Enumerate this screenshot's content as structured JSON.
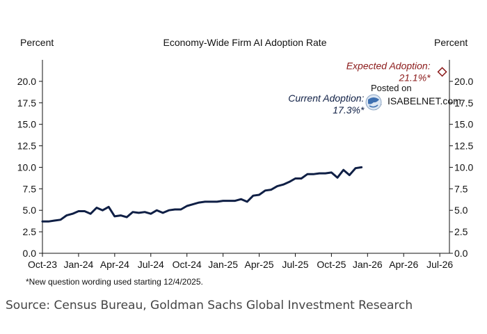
{
  "chart_data": {
    "type": "line",
    "title": "Economy-Wide Firm AI Adoption Rate",
    "ylabel_left": "Percent",
    "ylabel_right": "Percent",
    "ylim": [
      0,
      22.5
    ],
    "yticks": [
      0.0,
      2.5,
      5.0,
      7.5,
      10.0,
      12.5,
      15.0,
      17.5,
      20.0
    ],
    "yticks_labels": [
      "0.0",
      "2.5",
      "5.0",
      "7.5",
      "10.0",
      "12.5",
      "15.0",
      "17.5",
      "20.0"
    ],
    "xticks_labels": [
      "Oct-23",
      "Jan-24",
      "Apr-24",
      "Jul-24",
      "Oct-24",
      "Jan-25",
      "Apr-25",
      "Jul-25",
      "Oct-25",
      "Jan-26",
      "Apr-26",
      "Jul-26"
    ],
    "grid": false,
    "series": [
      {
        "name": "Firm AI Adoption Rate",
        "color": "#0f1f45",
        "x_months": [
          0,
          0.5,
          1,
          1.5,
          2,
          2.5,
          3,
          3.5,
          4,
          4.5,
          5,
          5.5,
          6,
          6.5,
          7,
          7.5,
          8,
          8.5,
          9,
          9.5,
          10,
          10.5,
          11,
          11.5,
          12,
          12.5,
          13,
          13.5,
          14,
          14.5,
          15,
          15.5,
          16,
          16.5,
          17,
          17.5,
          18,
          18.5,
          19,
          19.5,
          20,
          20.5,
          21,
          21.5,
          22,
          22.5,
          23,
          23.5,
          24,
          24.5,
          25
        ],
        "values": [
          3.7,
          3.7,
          3.8,
          3.9,
          4.4,
          4.6,
          4.9,
          4.9,
          4.6,
          5.3,
          5.0,
          5.4,
          4.3,
          4.4,
          4.2,
          4.8,
          4.7,
          4.8,
          4.6,
          5.0,
          4.7,
          5.0,
          5.1,
          5.1,
          5.5,
          5.7,
          5.9,
          6.0,
          6.0,
          6.0,
          6.1,
          6.1,
          6.1,
          6.3,
          6.0,
          6.7,
          6.8,
          7.3,
          7.4,
          7.8,
          8.0,
          8.3,
          8.7,
          8.7,
          9.2,
          9.2,
          9.3,
          9.3,
          9.4,
          8.8,
          9.7
        ]
      }
    ],
    "tail": {
      "x_months": [
        25.5,
        26,
        26.5
      ],
      "values": [
        9.1,
        9.9,
        10.0
      ]
    },
    "points": [
      {
        "name": "Current Adoption",
        "label": "Current Adoption:",
        "value_label": "17.3%*",
        "x_months": 27.7,
        "value": 17.3,
        "color": "#0f1f45",
        "filled": true
      },
      {
        "name": "Expected Adoption",
        "label": "Expected Adoption:",
        "value_label": "21.1%*",
        "x_months": 33.2,
        "value": 21.1,
        "color": "#8b1a1a",
        "filled": false
      }
    ],
    "x_range_months": [
      0,
      33.8
    ]
  },
  "footnote": "*New question wording used starting 12/4/2025.",
  "source": "Source: Census Bureau, Goldman Sachs Global Investment Research",
  "watermark": {
    "line1": "Posted on",
    "line2": "ISABELNET.com"
  }
}
